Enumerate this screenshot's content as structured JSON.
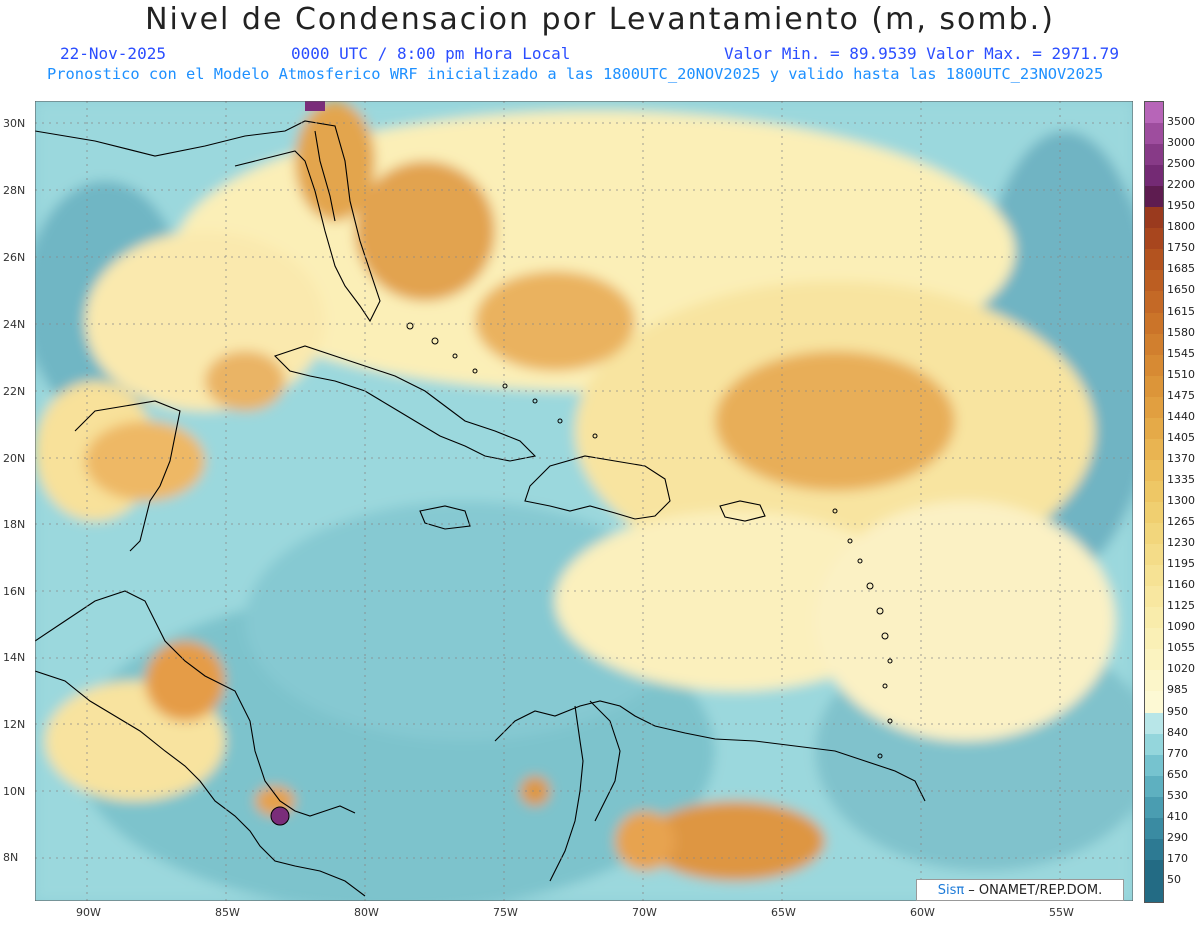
{
  "header": {
    "title": "Nivel de Condensacion por Levantamiento (m, somb.)",
    "date": "22-Nov-2025",
    "time": "0000 UTC / 8:00 pm Hora Local",
    "minmax": "Valor Min. = 89.9539  Valor Max. = 2971.79",
    "description": "Pronostico con el Modelo Atmosferico WRF inicializado a las 1800UTC_20NOV2025 y valido hasta las  1800UTC_23NOV2025"
  },
  "axes": {
    "lat_labels": [
      "30N",
      "28N",
      "26N",
      "24N",
      "22N",
      "20N",
      "18N",
      "16N",
      "14N",
      "12N",
      "10N",
      "8N"
    ],
    "lon_labels": [
      "90W",
      "85W",
      "80W",
      "75W",
      "70W",
      "65W",
      "60W",
      "55W"
    ]
  },
  "credit": {
    "sis": "Sisπ",
    "text": "– ONAMET/REP.DOM."
  },
  "colorbar": {
    "levels": [
      "3500",
      "3000",
      "2500",
      "2200",
      "1950",
      "1800",
      "1750",
      "1685",
      "1650",
      "1615",
      "1580",
      "1545",
      "1510",
      "1475",
      "1440",
      "1405",
      "1370",
      "1335",
      "1300",
      "1265",
      "1230",
      "1195",
      "1160",
      "1125",
      "1090",
      "1055",
      "1020",
      "985",
      "950",
      "840",
      "770",
      "650",
      "530",
      "410",
      "290",
      "170",
      "50"
    ],
    "colors": [
      "#b765b8",
      "#9e4d9e",
      "#873a87",
      "#742a74",
      "#5e1c50",
      "#9a3a1e",
      "#a8461e",
      "#b3531f",
      "#bc5e22",
      "#c46926",
      "#cb7429",
      "#d17f2e",
      "#d78a33",
      "#dc9539",
      "#e19f40",
      "#e5aa48",
      "#e9b451",
      "#ecbe5b",
      "#eec765",
      "#f0cf70",
      "#f2d67c",
      "#f4dc88",
      "#f6e294",
      "#f8e7a0",
      "#f9ecab",
      "#faf0b6",
      "#fbf3c0",
      "#fcf6ca",
      "#fdf9d4",
      "#b8e6e8",
      "#94d6dc",
      "#76c3cf",
      "#5eb0c0",
      "#4a9db1",
      "#3a8ba2",
      "#2d7a93",
      "#236b84"
    ]
  }
}
